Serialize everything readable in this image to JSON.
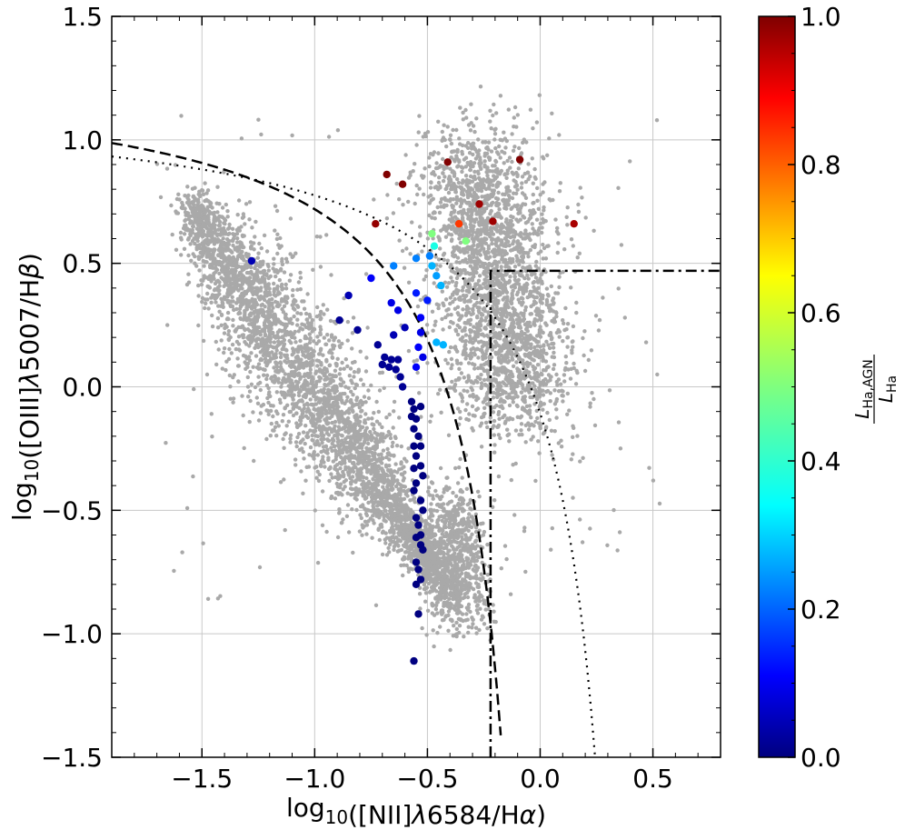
{
  "chart_data": {
    "type": "scatter",
    "xlabel": "log10([NII]λ6584/Hα)",
    "ylabel": "log10([OIII]λ5007/Hβ)",
    "colorbar_label": "L_Ha,AGN / L_Ha",
    "xlim": [
      -1.9,
      0.8
    ],
    "ylim": [
      -1.5,
      1.5
    ],
    "x_ticks": [
      -1.5,
      -1.0,
      -0.5,
      0.0,
      0.5
    ],
    "x_tick_labels": [
      "−1.5",
      "−1.0",
      "−0.5",
      "0.0",
      "0.5"
    ],
    "y_ticks": [
      -1.5,
      -1.0,
      -0.5,
      0.0,
      0.5,
      1.0,
      1.5
    ],
    "y_tick_labels": [
      "−1.5",
      "−1.0",
      "−0.5",
      "0.0",
      "0.5",
      "1.0",
      "1.5"
    ],
    "colorbar_ticks": [
      0.0,
      0.2,
      0.4,
      0.6,
      0.8,
      1.0
    ],
    "colorbar_tick_labels": [
      "0.0",
      "0.2",
      "0.4",
      "0.6",
      "0.8",
      "1.0"
    ],
    "colorbar_range": [
      0.0,
      1.0
    ],
    "colormap": "jet",
    "grid": true,
    "background_points_color": "#a9a9a9",
    "reference_lines": [
      {
        "style": "dashed",
        "curve": "0.61/(x-0.47)+1.19"
      },
      {
        "style": "dotted",
        "curve": "0.61/(x-0.05)+1.3"
      },
      {
        "style": "dash-dot",
        "curve": "step: x=-0.22 vertical, y=0.47 horizontal"
      }
    ],
    "highlighted_points": [
      {
        "x": -1.28,
        "y": 0.51,
        "c": 0.05
      },
      {
        "x": -0.68,
        "y": 0.86,
        "c": 1.0
      },
      {
        "x": -0.61,
        "y": 0.82,
        "c": 1.0
      },
      {
        "x": -0.41,
        "y": 0.91,
        "c": 1.0
      },
      {
        "x": -0.09,
        "y": 0.92,
        "c": 1.0
      },
      {
        "x": -0.73,
        "y": 0.66,
        "c": 0.98
      },
      {
        "x": -0.27,
        "y": 0.74,
        "c": 0.97
      },
      {
        "x": -0.21,
        "y": 0.67,
        "c": 0.97
      },
      {
        "x": 0.15,
        "y": 0.66,
        "c": 0.96
      },
      {
        "x": -0.36,
        "y": 0.66,
        "c": 0.82
      },
      {
        "x": -0.48,
        "y": 0.62,
        "c": 0.5
      },
      {
        "x": -0.33,
        "y": 0.59,
        "c": 0.5
      },
      {
        "x": -0.47,
        "y": 0.57,
        "c": 0.4
      },
      {
        "x": -0.65,
        "y": 0.49,
        "c": 0.25
      },
      {
        "x": -0.55,
        "y": 0.52,
        "c": 0.25
      },
      {
        "x": -0.49,
        "y": 0.53,
        "c": 0.25
      },
      {
        "x": -0.48,
        "y": 0.49,
        "c": 0.3
      },
      {
        "x": -0.46,
        "y": 0.45,
        "c": 0.28
      },
      {
        "x": -0.44,
        "y": 0.41,
        "c": 0.3
      },
      {
        "x": -0.75,
        "y": 0.44,
        "c": 0.12
      },
      {
        "x": -0.55,
        "y": 0.38,
        "c": 0.15
      },
      {
        "x": -0.5,
        "y": 0.35,
        "c": 0.15
      },
      {
        "x": -0.85,
        "y": 0.37,
        "c": 0.05
      },
      {
        "x": -0.66,
        "y": 0.34,
        "c": 0.1
      },
      {
        "x": -0.63,
        "y": 0.31,
        "c": 0.1
      },
      {
        "x": -0.53,
        "y": 0.28,
        "c": 0.12
      },
      {
        "x": -0.89,
        "y": 0.27,
        "c": 0.02
      },
      {
        "x": -0.6,
        "y": 0.24,
        "c": 0.05
      },
      {
        "x": -0.81,
        "y": 0.23,
        "c": 0.02
      },
      {
        "x": -0.65,
        "y": 0.21,
        "c": 0.05
      },
      {
        "x": -0.53,
        "y": 0.22,
        "c": 0.1
      },
      {
        "x": -0.46,
        "y": 0.18,
        "c": 0.3
      },
      {
        "x": -0.43,
        "y": 0.17,
        "c": 0.3
      },
      {
        "x": -0.72,
        "y": 0.17,
        "c": 0.02
      },
      {
        "x": -0.54,
        "y": 0.16,
        "c": 0.12
      },
      {
        "x": -0.69,
        "y": 0.12,
        "c": 0.02
      },
      {
        "x": -0.66,
        "y": 0.11,
        "c": 0.02
      },
      {
        "x": -0.63,
        "y": 0.11,
        "c": 0.02
      },
      {
        "x": -0.52,
        "y": 0.12,
        "c": 0.1
      },
      {
        "x": -0.7,
        "y": 0.09,
        "c": 0.02
      },
      {
        "x": -0.67,
        "y": 0.08,
        "c": 0.02
      },
      {
        "x": -0.64,
        "y": 0.07,
        "c": 0.02
      },
      {
        "x": -0.55,
        "y": 0.08,
        "c": 0.12
      },
      {
        "x": -0.62,
        "y": 0.04,
        "c": 0.02
      },
      {
        "x": -0.61,
        "y": 0.0,
        "c": 0.02
      },
      {
        "x": -0.57,
        "y": -0.06,
        "c": 0.0
      },
      {
        "x": -0.56,
        "y": -0.09,
        "c": 0.0
      },
      {
        "x": -0.53,
        "y": -0.08,
        "c": 0.0
      },
      {
        "x": -0.57,
        "y": -0.12,
        "c": 0.0
      },
      {
        "x": -0.55,
        "y": -0.13,
        "c": 0.0
      },
      {
        "x": -0.56,
        "y": -0.17,
        "c": 0.0
      },
      {
        "x": -0.54,
        "y": -0.2,
        "c": 0.0
      },
      {
        "x": -0.56,
        "y": -0.24,
        "c": 0.0
      },
      {
        "x": -0.53,
        "y": -0.24,
        "c": 0.0
      },
      {
        "x": -0.55,
        "y": -0.28,
        "c": 0.0
      },
      {
        "x": -0.53,
        "y": -0.32,
        "c": 0.0
      },
      {
        "x": -0.56,
        "y": -0.33,
        "c": 0.0
      },
      {
        "x": -0.52,
        "y": -0.36,
        "c": 0.0
      },
      {
        "x": -0.55,
        "y": -0.39,
        "c": 0.0
      },
      {
        "x": -0.56,
        "y": -0.42,
        "c": 0.0
      },
      {
        "x": -0.53,
        "y": -0.46,
        "c": 0.0
      },
      {
        "x": -0.52,
        "y": -0.5,
        "c": 0.0
      },
      {
        "x": -0.55,
        "y": -0.53,
        "c": 0.0
      },
      {
        "x": -0.54,
        "y": -0.56,
        "c": 0.0
      },
      {
        "x": -0.53,
        "y": -0.6,
        "c": 0.0
      },
      {
        "x": -0.55,
        "y": -0.61,
        "c": 0.0
      },
      {
        "x": -0.53,
        "y": -0.64,
        "c": 0.0
      },
      {
        "x": -0.52,
        "y": -0.66,
        "c": 0.0
      },
      {
        "x": -0.55,
        "y": -0.71,
        "c": 0.0
      },
      {
        "x": -0.54,
        "y": -0.74,
        "c": 0.0
      },
      {
        "x": -0.53,
        "y": -0.78,
        "c": 0.0
      },
      {
        "x": -0.55,
        "y": -0.8,
        "c": 0.0
      },
      {
        "x": -0.54,
        "y": -0.92,
        "c": 0.0
      },
      {
        "x": -0.56,
        "y": -1.11,
        "c": 0.0
      }
    ]
  }
}
